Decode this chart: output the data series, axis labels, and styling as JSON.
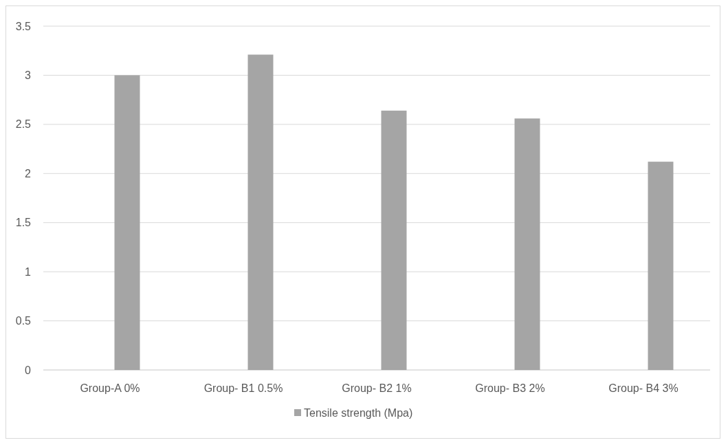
{
  "chart_data": {
    "type": "bar",
    "categories": [
      "Group-A 0%",
      "Group- B1 0.5%",
      "Group- B2 1%",
      "Group- B3 2%",
      "Group- B4 3%"
    ],
    "series": [
      {
        "name": "Tensile strength (Mpa)",
        "color": "#a5a5a5",
        "values": [
          3.0,
          3.21,
          2.64,
          2.56,
          2.12
        ]
      }
    ],
    "ylim": [
      0,
      3.5
    ],
    "yticks": [
      0,
      0.5,
      1,
      1.5,
      2,
      2.5,
      3,
      3.5
    ],
    "grid": "y",
    "legend": "bottom"
  }
}
